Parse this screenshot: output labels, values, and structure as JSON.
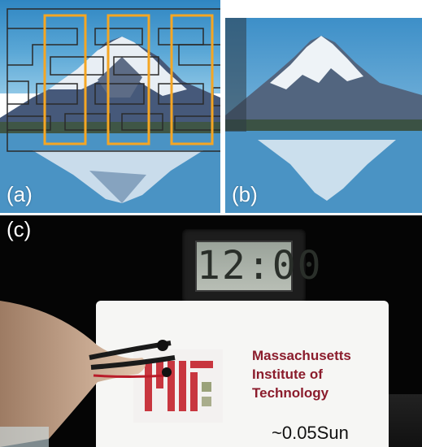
{
  "panels": {
    "a": {
      "label": "(a)"
    },
    "b": {
      "label": "(b)"
    },
    "c": {
      "label": "(c)",
      "clock_display": "12:00",
      "card": {
        "org_lines": [
          "Massachusetts",
          "Institute of",
          "Technology"
        ],
        "illumination": "~0.05Sun"
      }
    }
  },
  "colors": {
    "grid_dark": "#2a2a2a",
    "grid_orange": "#f5a623",
    "mit_red": "#8b1c2c"
  }
}
